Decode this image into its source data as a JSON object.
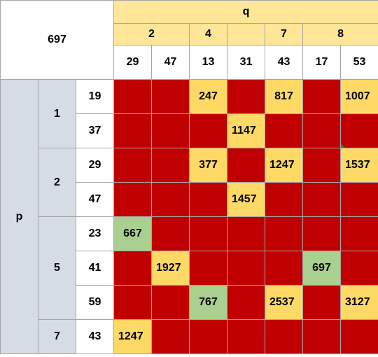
{
  "corner_value": "697",
  "q_label": "q",
  "p_label": "p",
  "q_groups": [
    "2",
    "4",
    "",
    "7",
    "8"
  ],
  "q_values": [
    "29",
    "47",
    "13",
    "31",
    "43",
    "17",
    "53"
  ],
  "p_groups": [
    "1",
    "2",
    "5",
    "7"
  ],
  "rows": [
    {
      "p": "19",
      "cells": [
        "",
        "",
        "247",
        "",
        "817",
        "",
        "1007"
      ],
      "colors": [
        "red",
        "red",
        "yellow",
        "red",
        "yellow",
        "red",
        "yellow"
      ]
    },
    {
      "p": "37",
      "cells": [
        "",
        "",
        "",
        "1147",
        "",
        "",
        ""
      ],
      "colors": [
        "red",
        "red",
        "red",
        "yellow",
        "red",
        "red",
        "red"
      ]
    },
    {
      "p": "29",
      "cells": [
        "",
        "",
        "377",
        "",
        "1247",
        "",
        "1537"
      ],
      "colors": [
        "red",
        "red",
        "yellow",
        "red",
        "yellow",
        "red",
        "yellow"
      ]
    },
    {
      "p": "47",
      "cells": [
        "",
        "",
        "",
        "1457",
        "",
        "",
        ""
      ],
      "colors": [
        "red",
        "red",
        "red",
        "yellow",
        "red",
        "red",
        "red"
      ]
    },
    {
      "p": "23",
      "cells": [
        "667",
        "",
        "",
        "",
        "",
        "",
        ""
      ],
      "colors": [
        "green",
        "red",
        "red",
        "red",
        "red",
        "red",
        "red"
      ]
    },
    {
      "p": "41",
      "cells": [
        "",
        "1927",
        "",
        "",
        "",
        "697",
        ""
      ],
      "colors": [
        "red",
        "yellow",
        "red",
        "red",
        "red",
        "green",
        "red"
      ]
    },
    {
      "p": "59",
      "cells": [
        "",
        "",
        "767",
        "",
        "2537",
        "",
        "3127"
      ],
      "colors": [
        "red",
        "red",
        "green",
        "red",
        "yellow",
        "red",
        "yellow"
      ]
    },
    {
      "p": "43",
      "cells": [
        "1247",
        "",
        "",
        "",
        "",
        "",
        ""
      ],
      "colors": [
        "yellow",
        "red",
        "red",
        "red",
        "red",
        "red",
        "red"
      ]
    }
  ],
  "colors": {
    "red": "#c00000",
    "yellow": "#ffd966",
    "green": "#a9d08e",
    "header_yellow": "#ffe699",
    "p_gray": "#d6dce4"
  }
}
